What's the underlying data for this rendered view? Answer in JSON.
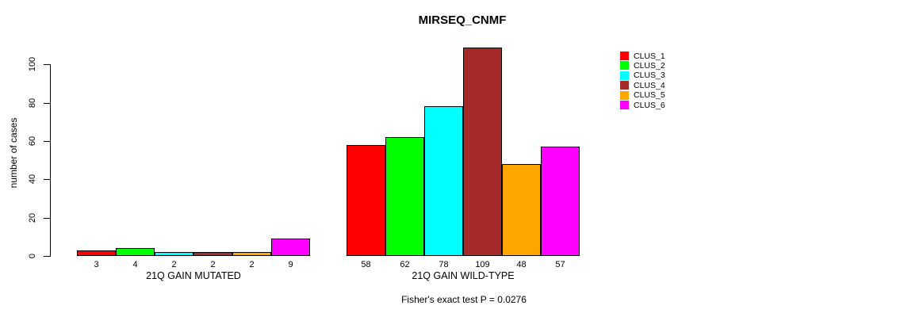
{
  "chart_data": {
    "type": "bar",
    "title": "MIRSEQ_CNMF",
    "ylabel": "number of cases",
    "ylim": [
      0,
      100
    ],
    "yticks": [
      0,
      20,
      40,
      60,
      80,
      100
    ],
    "grid": false,
    "legend_position": "right",
    "categories": [
      "21Q GAIN MUTATED",
      "21Q GAIN WILD-TYPE"
    ],
    "series": [
      {
        "name": "CLUS_1",
        "color": "#FF0000",
        "values": [
          3,
          58
        ]
      },
      {
        "name": "CLUS_2",
        "color": "#00FF00",
        "values": [
          4,
          62
        ]
      },
      {
        "name": "CLUS_3",
        "color": "#00FFFF",
        "values": [
          2,
          78
        ]
      },
      {
        "name": "CLUS_4",
        "color": "#A52A2A",
        "values": [
          2,
          109
        ]
      },
      {
        "name": "CLUS_5",
        "color": "#FFA500",
        "values": [
          2,
          48
        ]
      },
      {
        "name": "CLUS_6",
        "color": "#FF00FF",
        "values": [
          9,
          57
        ]
      }
    ],
    "bar_value_labels": [
      [
        "3",
        "4",
        "2",
        "2",
        "2",
        "9"
      ],
      [
        "58",
        "62",
        "78",
        "109",
        "48",
        "57"
      ]
    ],
    "annotation": "Fisher's exact test P = 0.0276"
  }
}
